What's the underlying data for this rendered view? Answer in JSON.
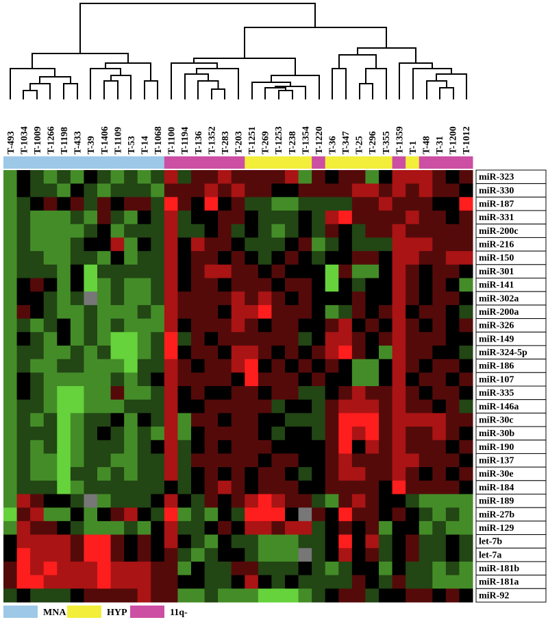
{
  "chart_data": {
    "type": "heatmap",
    "x": [
      "T-493",
      "T-1034",
      "T-1009",
      "T-1266",
      "T-1198",
      "T-433",
      "T-39",
      "T-1406",
      "T-1109",
      "T-53",
      "T-14",
      "T-1068",
      "T-1100",
      "T-1194",
      "T-136",
      "T-1352",
      "T-283",
      "T-203",
      "T-1251",
      "T-269",
      "T-1253",
      "T-238",
      "T-1354",
      "T-1220",
      "T-36",
      "T-347",
      "T-25",
      "T-296",
      "T-355",
      "T-1359",
      "T-1",
      "T-48",
      "T-31",
      "T-1200",
      "T-1012"
    ],
    "y": [
      "miR-323",
      "miR-330",
      "miR-187",
      "miR-331",
      "miR-200c",
      "miR-216",
      "miR-150",
      "miR-301",
      "miR-141",
      "miR-302a",
      "miR-200a",
      "miR-326",
      "miR-149",
      "miR-324-5p",
      "miR-186",
      "miR-107",
      "miR-335",
      "miR-146a",
      "miR-30c",
      "miR-30b",
      "miR-190",
      "miR-137",
      "miR-30e",
      "miR-184",
      "miR-189",
      "miR-27b",
      "miR-129",
      "let-7b",
      "let-7a",
      "miR-181b",
      "miR-181a",
      "miR-92"
    ],
    "column_groups": [
      "MNA",
      "MNA",
      "MNA",
      "MNA",
      "MNA",
      "MNA",
      "MNA",
      "MNA",
      "MNA",
      "MNA",
      "MNA",
      "MNA",
      "11q-",
      "11q-",
      "11q-",
      "11q-",
      "11q-",
      "11q-",
      "HYP",
      "HYP",
      "HYP",
      "HYP",
      "HYP",
      "11q-",
      "HYP",
      "HYP",
      "HYP",
      "HYP",
      "HYP",
      "11q-",
      "HYP",
      "11q-",
      "11q-",
      "11q-",
      "11q-"
    ],
    "legend": [
      {
        "name": "MNA",
        "color": "#9dc8e8"
      },
      {
        "name": "HYP",
        "color": "#f2ee3a"
      },
      {
        "name": "11q-",
        "color": "#cc4fa3"
      }
    ],
    "low_color": "#66d23c",
    "high_color": "#ff1e1e",
    "missing_color": "#777777",
    "color_lim": [
      -3,
      3
    ],
    "values": [
      [
        -2,
        0,
        -1,
        -2,
        -1,
        -2,
        0,
        -1,
        -2,
        -1,
        -2,
        -1,
        2,
        -1,
        1,
        1,
        2,
        1,
        1,
        1,
        1,
        2,
        -2,
        1,
        0,
        1,
        1,
        -2,
        0,
        2,
        2,
        2,
        1,
        0,
        1
      ],
      [
        -2,
        0,
        -1,
        -1,
        -2,
        0,
        -1,
        -2,
        -1,
        -1,
        -1,
        -2,
        1,
        1,
        1,
        2,
        1,
        2,
        1,
        1,
        0,
        0,
        1,
        1,
        1,
        1,
        2,
        2,
        1,
        2,
        1,
        2,
        1,
        1,
        0
      ],
      [
        -2,
        -1,
        0,
        1,
        0,
        1,
        -1,
        1,
        0,
        1,
        1,
        -1,
        3,
        1,
        0,
        3,
        0,
        1,
        -1,
        -1,
        -2,
        -2,
        -1,
        -1,
        -1,
        -1,
        1,
        1,
        2,
        1,
        1,
        1,
        0,
        0,
        3
      ],
      [
        -2,
        -1,
        -2,
        -2,
        -2,
        -1,
        -2,
        1,
        -1,
        -2,
        0,
        -1,
        2,
        -1,
        0,
        0,
        1,
        1,
        0,
        -1,
        -1,
        -1,
        0,
        -1,
        2,
        3,
        1,
        1,
        1,
        1,
        2,
        1,
        1,
        0,
        1
      ],
      [
        -2,
        -1,
        -2,
        -2,
        -2,
        -2,
        -1,
        0,
        -2,
        -1,
        -1,
        -1,
        2,
        -1,
        -1,
        0,
        1,
        -1,
        0,
        -1,
        -2,
        -1,
        0,
        -1,
        1,
        0,
        -1,
        1,
        1,
        2,
        1,
        1,
        1,
        1,
        1
      ],
      [
        -2,
        -1,
        -2,
        -2,
        -2,
        -1,
        0,
        0,
        2,
        -2,
        0,
        -1,
        2,
        0,
        2,
        1,
        1,
        0,
        -1,
        -1,
        -1,
        0,
        1,
        -2,
        -1,
        0,
        -1,
        -1,
        -1,
        2,
        2,
        2,
        1,
        1,
        1
      ],
      [
        -2,
        -1,
        -1,
        -2,
        -2,
        -1,
        -1,
        -2,
        0,
        -2,
        -1,
        -1,
        2,
        0,
        1,
        1,
        0,
        1,
        0,
        -1,
        0,
        1,
        0,
        -1,
        0,
        0,
        1,
        1,
        0,
        2,
        2,
        1,
        1,
        2,
        2
      ],
      [
        -2,
        -1,
        -1,
        -1,
        -2,
        0,
        -3,
        -1,
        -1,
        -1,
        -1,
        -1,
        2,
        0,
        1,
        2,
        2,
        1,
        1,
        0,
        1,
        0,
        0,
        0,
        -3,
        1,
        -2,
        -2,
        0,
        2,
        1,
        0,
        1,
        1,
        0
      ],
      [
        -2,
        0,
        1,
        0,
        -2,
        0,
        -3,
        -2,
        -1,
        -2,
        -2,
        -1,
        2,
        0,
        1,
        1,
        0,
        1,
        1,
        1,
        0,
        1,
        1,
        0,
        -3,
        0,
        -1,
        0,
        0,
        2,
        1,
        0,
        1,
        0,
        -2
      ],
      [
        -2,
        0,
        0,
        -1,
        -2,
        -1,
        null,
        -2,
        -1,
        -2,
        -2,
        -1,
        2,
        1,
        1,
        1,
        1,
        2,
        1,
        2,
        1,
        0,
        1,
        0,
        0,
        0,
        1,
        0,
        0,
        2,
        1,
        0,
        1,
        1,
        0
      ],
      [
        -2,
        1,
        0,
        -1,
        -2,
        -2,
        -1,
        -2,
        -2,
        -2,
        -1,
        -2,
        2,
        1,
        1,
        1,
        0,
        2,
        2,
        3,
        1,
        1,
        1,
        0,
        -2,
        -1,
        1,
        0,
        1,
        2,
        0,
        1,
        1,
        0,
        -1
      ],
      [
        -2,
        -1,
        -2,
        -1,
        0,
        -2,
        -1,
        -2,
        -1,
        -2,
        -2,
        -2,
        2,
        0,
        1,
        1,
        1,
        2,
        1,
        0,
        1,
        1,
        0,
        0,
        1,
        2,
        0,
        1,
        0,
        2,
        1,
        0,
        1,
        0,
        1
      ],
      [
        -2,
        0,
        -1,
        -2,
        0,
        -2,
        -1,
        -2,
        -3,
        -3,
        -2,
        -1,
        3,
        -1,
        1,
        0,
        1,
        1,
        1,
        1,
        1,
        1,
        -1,
        0,
        2,
        2,
        1,
        0,
        1,
        2,
        1,
        1,
        1,
        0,
        0
      ],
      [
        -2,
        -1,
        -1,
        -2,
        -2,
        -1,
        -2,
        -1,
        -3,
        -3,
        -2,
        -1,
        3,
        0,
        1,
        1,
        0,
        2,
        2,
        1,
        0,
        1,
        0,
        1,
        2,
        3,
        1,
        0,
        -2,
        2,
        1,
        1,
        0,
        0,
        -1
      ],
      [
        -2,
        -1,
        -2,
        -2,
        -1,
        -1,
        -2,
        -2,
        -2,
        -3,
        -1,
        -1,
        2,
        1,
        0,
        1,
        1,
        2,
        3,
        0,
        1,
        0,
        1,
        0,
        1,
        0,
        -2,
        -2,
        0,
        2,
        1,
        0,
        1,
        1,
        0
      ],
      [
        -2,
        0,
        -1,
        -2,
        -2,
        -2,
        -2,
        -2,
        -1,
        -2,
        -1,
        0,
        2,
        1,
        1,
        1,
        1,
        0,
        3,
        1,
        1,
        1,
        0,
        1,
        0,
        0,
        -2,
        -2,
        0,
        2,
        0,
        1,
        1,
        0,
        1
      ],
      [
        -2,
        0,
        -1,
        -2,
        -3,
        -3,
        -2,
        -2,
        1,
        -2,
        -2,
        -1,
        2,
        0,
        1,
        0,
        0,
        1,
        1,
        0,
        1,
        1,
        -1,
        -1,
        0,
        1,
        2,
        1,
        1,
        2,
        1,
        0,
        1,
        1,
        0
      ],
      [
        -2,
        -1,
        -1,
        -2,
        -3,
        -3,
        -2,
        -2,
        -2,
        -1,
        -1,
        -1,
        2,
        0,
        0,
        1,
        1,
        1,
        1,
        1,
        -1,
        0,
        0,
        -1,
        1,
        2,
        2,
        2,
        1,
        2,
        1,
        1,
        0,
        1,
        -1
      ],
      [
        -2,
        -1,
        -2,
        -1,
        -3,
        -2,
        -1,
        -1,
        0,
        -2,
        0,
        -1,
        2,
        -2,
        1,
        1,
        0,
        1,
        1,
        0,
        0,
        -1,
        -1,
        -1,
        1,
        3,
        3,
        3,
        1,
        2,
        2,
        2,
        2,
        1,
        1
      ],
      [
        -2,
        -1,
        -1,
        -1,
        -3,
        -2,
        -1,
        0,
        -1,
        -2,
        -1,
        -2,
        2,
        -2,
        0,
        1,
        1,
        1,
        1,
        0,
        -1,
        0,
        0,
        -1,
        1,
        3,
        2,
        3,
        1,
        2,
        1,
        1,
        2,
        1,
        0
      ],
      [
        -2,
        -1,
        -2,
        -1,
        -3,
        -2,
        -1,
        -1,
        -1,
        -2,
        -1,
        0,
        2,
        -1,
        0,
        1,
        0,
        1,
        1,
        1,
        0,
        0,
        0,
        0,
        1,
        3,
        0,
        2,
        1,
        2,
        1,
        1,
        1,
        0,
        1
      ],
      [
        -2,
        -1,
        -2,
        -2,
        -3,
        -2,
        -1,
        -1,
        -2,
        -2,
        -1,
        -1,
        2,
        -1,
        1,
        1,
        1,
        1,
        1,
        0,
        1,
        1,
        0,
        0,
        1,
        2,
        1,
        1,
        1,
        2,
        2,
        1,
        1,
        1,
        0
      ],
      [
        -2,
        -1,
        -2,
        -2,
        -3,
        -1,
        -1,
        -2,
        -1,
        -2,
        -1,
        -1,
        2,
        -1,
        0,
        1,
        0,
        1,
        0,
        1,
        1,
        0,
        -1,
        0,
        1,
        2,
        2,
        1,
        1,
        2,
        1,
        0,
        1,
        0,
        1
      ],
      [
        -2,
        -1,
        -1,
        -1,
        -3,
        -2,
        -1,
        -1,
        -1,
        -1,
        -1,
        -1,
        0,
        -1,
        0,
        1,
        2,
        1,
        0,
        1,
        1,
        1,
        0,
        0,
        1,
        1,
        1,
        1,
        0,
        3,
        1,
        1,
        1,
        1,
        0
      ],
      [
        -2,
        2,
        1,
        0,
        0,
        -1,
        null,
        -2,
        -1,
        -1,
        -1,
        0,
        2,
        0,
        -1,
        1,
        0,
        1,
        2,
        3,
        2,
        1,
        1,
        -1,
        -2,
        1,
        2,
        1,
        0,
        0,
        -1,
        -2,
        -2,
        -2,
        -2
      ],
      [
        -3,
        1,
        2,
        -2,
        -2,
        0,
        -2,
        0,
        1,
        2,
        0,
        -1,
        3,
        -2,
        -1,
        -2,
        0,
        -1,
        3,
        3,
        3,
        0,
        null,
        1,
        0,
        3,
        1,
        1,
        0,
        1,
        0,
        -1,
        -2,
        -1,
        -2
      ],
      [
        -2,
        2,
        1,
        1,
        0,
        -1,
        -2,
        -2,
        -2,
        -1,
        -2,
        0,
        2,
        -1,
        -1,
        0,
        1,
        0,
        2,
        2,
        1,
        2,
        2,
        -1,
        0,
        1,
        0,
        1,
        -2,
        0,
        0,
        -2,
        -1,
        -2,
        -2
      ],
      [
        0,
        2,
        2,
        2,
        2,
        1,
        3,
        3,
        1,
        0,
        1,
        0,
        2,
        0,
        -1,
        -2,
        0,
        -1,
        -1,
        -2,
        -2,
        -2,
        -1,
        -1,
        0,
        3,
        0,
        2,
        -1,
        0,
        1,
        -1,
        -1,
        0,
        -1
      ],
      [
        0,
        3,
        2,
        2,
        2,
        1,
        3,
        3,
        1,
        0,
        1,
        0,
        1,
        -1,
        -2,
        -1,
        0,
        0,
        -1,
        -2,
        -2,
        -2,
        null,
        -1,
        0,
        2,
        0,
        1,
        -1,
        0,
        1,
        -1,
        -1,
        0,
        -1
      ],
      [
        1,
        3,
        2,
        3,
        2,
        2,
        2,
        3,
        2,
        2,
        2,
        1,
        1,
        -2,
        0,
        -1,
        -1,
        1,
        1,
        -1,
        -1,
        -1,
        0,
        -1,
        -2,
        -1,
        0,
        0,
        -2,
        0,
        -1,
        -1,
        -2,
        -1,
        -2
      ],
      [
        1,
        3,
        3,
        2,
        2,
        2,
        2,
        3,
        2,
        2,
        2,
        1,
        1,
        0,
        0,
        -1,
        -1,
        0,
        2,
        0,
        -1,
        0,
        -1,
        -1,
        -1,
        -1,
        1,
        0,
        -1,
        1,
        -1,
        -1,
        -2,
        -2,
        -2
      ],
      [
        -1,
        0,
        -1,
        -1,
        -1,
        0,
        1,
        1,
        1,
        1,
        2,
        1,
        1,
        -2,
        -2,
        -1,
        -2,
        -2,
        -2,
        -3,
        -3,
        -3,
        -2,
        -1,
        0,
        1,
        1,
        -1,
        0,
        0,
        1,
        1,
        0,
        1,
        0
      ]
    ]
  }
}
